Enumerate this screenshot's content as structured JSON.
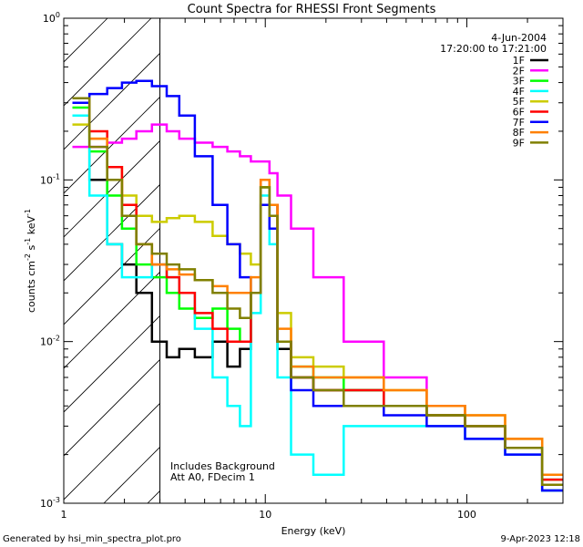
{
  "chart_data": {
    "type": "line",
    "title": "Count Spectra for RHESSI Front Segments",
    "xlabel": "Energy (keV)",
    "ylabel_main": "counts cm",
    "ylabel_exp1": "-2",
    "ylabel_mid": " s",
    "ylabel_exp2": "-1",
    "ylabel_end": " keV",
    "ylabel_exp3": "-1",
    "xscale": "log",
    "yscale": "log",
    "xlim": [
      1,
      300
    ],
    "ylim": [
      0.001,
      1
    ],
    "x_ticks": [
      {
        "value": 1,
        "label": "1"
      },
      {
        "value": 10,
        "label": "10"
      },
      {
        "value": 100,
        "label": "100"
      }
    ],
    "y_ticks": [
      {
        "value": 0.001,
        "base": "10",
        "exp": "-3"
      },
      {
        "value": 0.01,
        "base": "10",
        "exp": "-2"
      },
      {
        "value": 0.1,
        "base": "10",
        "exp": "-1"
      },
      {
        "value": 1,
        "base": "10",
        "exp": "0"
      }
    ],
    "date": "4-Jun-2004",
    "time_range": "17:20:00 to 17:21:00",
    "annotation_line1": "Includes Background",
    "annotation_line2": "Att A0, FDecim 1",
    "hatch_xmax": 3,
    "series": [
      {
        "name": "1F",
        "color": "#000000",
        "x": [
          1.2,
          1.5,
          1.8,
          2.1,
          2.5,
          3,
          3.5,
          4,
          5,
          6,
          7,
          8,
          9,
          10,
          11,
          12,
          15,
          20,
          30,
          50,
          80,
          120,
          200,
          280
        ],
        "values": [
          0.3,
          0.1,
          0.04,
          0.03,
          0.02,
          0.01,
          0.008,
          0.009,
          0.008,
          0.01,
          0.007,
          0.009,
          0.02,
          0.09,
          0.07,
          0.009,
          0.006,
          0.005,
          0.005,
          0.004,
          0.0035,
          0.003,
          0.0022,
          0.0012
        ]
      },
      {
        "name": "2F",
        "color": "#ff00ff",
        "x": [
          1.2,
          1.5,
          1.8,
          2.1,
          2.5,
          3,
          3.5,
          4,
          5,
          6,
          7,
          8,
          9,
          10,
          11,
          12,
          15,
          20,
          30,
          50,
          80,
          120,
          200,
          280
        ],
        "values": [
          0.16,
          0.16,
          0.17,
          0.18,
          0.2,
          0.22,
          0.2,
          0.18,
          0.17,
          0.16,
          0.15,
          0.14,
          0.13,
          0.13,
          0.11,
          0.08,
          0.05,
          0.025,
          0.01,
          0.006,
          0.004,
          0.003,
          0.0022,
          0.0015
        ]
      },
      {
        "name": "3F",
        "color": "#00ff00",
        "x": [
          1.2,
          1.5,
          1.8,
          2.1,
          2.5,
          3,
          3.5,
          4,
          5,
          6,
          7,
          8,
          9,
          10,
          11,
          12,
          15,
          20,
          30,
          50,
          80,
          120,
          200,
          280
        ],
        "values": [
          0.28,
          0.15,
          0.08,
          0.05,
          0.03,
          0.025,
          0.02,
          0.016,
          0.014,
          0.016,
          0.012,
          0.01,
          0.02,
          0.09,
          0.06,
          0.01,
          0.007,
          0.006,
          0.005,
          0.004,
          0.0035,
          0.003,
          0.0022,
          0.0014
        ]
      },
      {
        "name": "4F",
        "color": "#00ffff",
        "x": [
          1.2,
          1.5,
          1.8,
          2.1,
          2.5,
          3,
          3.5,
          4,
          5,
          6,
          7,
          8,
          9,
          10,
          11,
          12,
          15,
          20,
          30,
          50,
          80,
          120,
          200,
          280
        ],
        "values": [
          0.25,
          0.08,
          0.04,
          0.025,
          0.025,
          0.03,
          0.025,
          0.02,
          0.012,
          0.006,
          0.004,
          0.003,
          0.015,
          0.08,
          0.04,
          0.006,
          0.002,
          0.0015,
          0.003,
          0.003,
          0.003,
          0.0025,
          0.002,
          0.0012
        ]
      },
      {
        "name": "5F",
        "color": "#cccc00",
        "x": [
          1.2,
          1.5,
          1.8,
          2.1,
          2.5,
          3,
          3.5,
          4,
          5,
          6,
          7,
          8,
          9,
          10,
          11,
          12,
          15,
          20,
          30,
          50,
          80,
          120,
          200,
          280
        ],
        "values": [
          0.22,
          0.18,
          0.12,
          0.08,
          0.06,
          0.055,
          0.058,
          0.06,
          0.055,
          0.045,
          0.04,
          0.035,
          0.03,
          0.09,
          0.06,
          0.015,
          0.008,
          0.007,
          0.006,
          0.005,
          0.004,
          0.0035,
          0.0025,
          0.0015
        ]
      },
      {
        "name": "6F",
        "color": "#ff0000",
        "x": [
          1.2,
          1.5,
          1.8,
          2.1,
          2.5,
          3,
          3.5,
          4,
          5,
          6,
          7,
          8,
          9,
          10,
          11,
          12,
          15,
          20,
          30,
          50,
          80,
          120,
          200,
          280
        ],
        "values": [
          0.3,
          0.2,
          0.12,
          0.07,
          0.04,
          0.03,
          0.025,
          0.02,
          0.015,
          0.012,
          0.01,
          0.01,
          0.02,
          0.1,
          0.07,
          0.01,
          0.006,
          0.005,
          0.005,
          0.004,
          0.0035,
          0.003,
          0.0022,
          0.0014
        ]
      },
      {
        "name": "7F",
        "color": "#0000ff",
        "x": [
          1.2,
          1.5,
          1.8,
          2.1,
          2.5,
          3,
          3.5,
          4,
          5,
          6,
          7,
          8,
          9,
          10,
          11,
          12,
          15,
          20,
          30,
          50,
          80,
          120,
          200,
          280
        ],
        "values": [
          0.3,
          0.34,
          0.37,
          0.4,
          0.41,
          0.38,
          0.33,
          0.25,
          0.14,
          0.07,
          0.04,
          0.025,
          0.02,
          0.07,
          0.05,
          0.01,
          0.005,
          0.004,
          0.004,
          0.0035,
          0.003,
          0.0025,
          0.002,
          0.0012
        ]
      },
      {
        "name": "8F",
        "color": "#ff8000",
        "x": [
          1.2,
          1.5,
          1.8,
          2.1,
          2.5,
          3,
          3.5,
          4,
          5,
          6,
          7,
          8,
          9,
          10,
          11,
          12,
          15,
          20,
          30,
          50,
          80,
          120,
          200,
          280
        ],
        "values": [
          0.32,
          0.18,
          0.1,
          0.06,
          0.04,
          0.03,
          0.028,
          0.026,
          0.024,
          0.022,
          0.02,
          0.02,
          0.025,
          0.1,
          0.07,
          0.012,
          0.007,
          0.006,
          0.006,
          0.005,
          0.004,
          0.0035,
          0.0025,
          0.0015
        ]
      },
      {
        "name": "9F",
        "color": "#808000",
        "x": [
          1.2,
          1.5,
          1.8,
          2.1,
          2.5,
          3,
          3.5,
          4,
          5,
          6,
          7,
          8,
          9,
          10,
          11,
          12,
          15,
          20,
          30,
          50,
          80,
          120,
          200,
          280
        ],
        "values": [
          0.32,
          0.16,
          0.1,
          0.06,
          0.04,
          0.035,
          0.03,
          0.028,
          0.024,
          0.02,
          0.016,
          0.014,
          0.02,
          0.09,
          0.06,
          0.01,
          0.006,
          0.005,
          0.004,
          0.004,
          0.0035,
          0.003,
          0.0022,
          0.0013
        ]
      }
    ]
  },
  "footer": {
    "generated_by": "Generated by hsi_min_spectra_plot.pro",
    "timestamp": "9-Apr-2023 12:18"
  }
}
